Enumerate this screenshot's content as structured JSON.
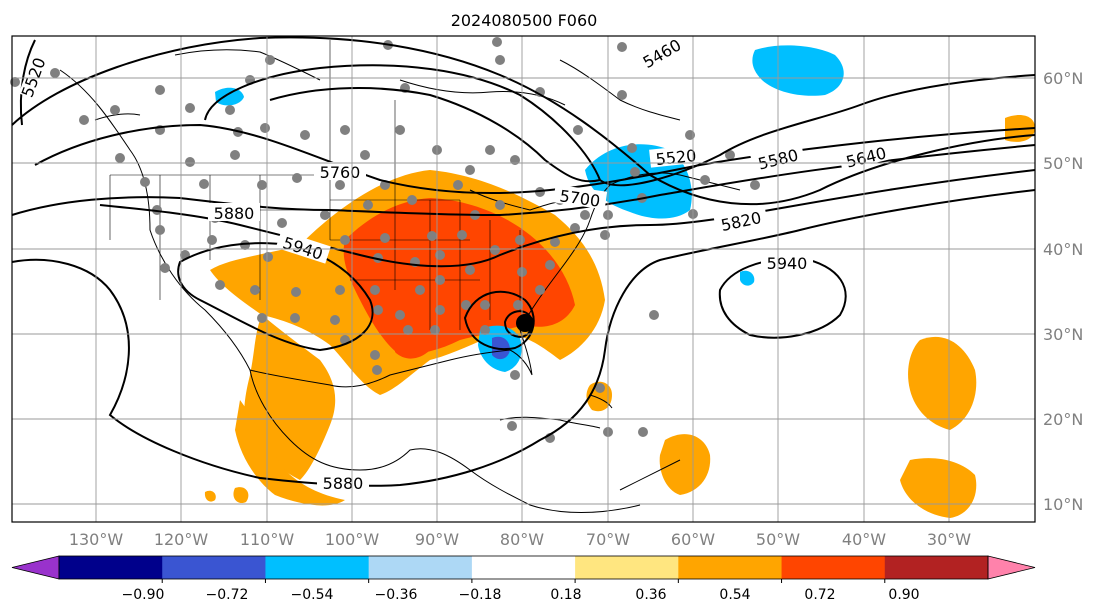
{
  "title": "2024080500 F060",
  "lat_labels": [
    "60°N",
    "50°N",
    "40°N",
    "30°N",
    "20°N",
    "10°N"
  ],
  "lon_labels": [
    "130°W",
    "120°W",
    "110°W",
    "100°W",
    "90°W",
    "80°W",
    "70°W",
    "60°W",
    "50°W",
    "40°W",
    "30°W"
  ],
  "contour_labels": [
    "5520",
    "5460",
    "5760",
    "5880",
    "5940",
    "5700",
    "5520",
    "5580",
    "5640",
    "5820",
    "5940",
    "5880"
  ],
  "colorbar": {
    "colors": [
      "#9932cc",
      "#00008b",
      "#3a55d2",
      "#00bfff",
      "#add8f5",
      "#ffffff",
      "#ffe680",
      "#ffa500",
      "#ff4500",
      "#b22222",
      "#ff82ab"
    ],
    "ticks": [
      "−0.90",
      "−0.72",
      "−0.54",
      "−0.36",
      "−0.18",
      "0.18",
      "0.36",
      "0.54",
      "0.72",
      "0.90"
    ]
  },
  "map": {
    "shading": "orange-red anomaly over central/eastern US, Mexico and east Atlantic; blue anomalies near Hudson Bay region, Greenland, and Gulf coast near Florida",
    "storm_marker": "black-dot"
  }
}
